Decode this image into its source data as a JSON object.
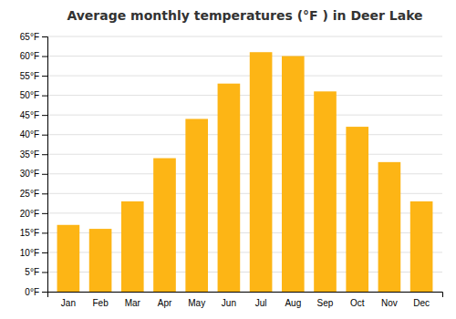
{
  "chart_data": {
    "type": "bar",
    "title": "Average monthly temperatures (°F ) in Deer Lake",
    "categories": [
      "Jan",
      "Feb",
      "Mar",
      "Apr",
      "May",
      "Jun",
      "Jul",
      "Aug",
      "Sep",
      "Oct",
      "Nov",
      "Dec"
    ],
    "values": [
      17,
      16,
      23,
      34,
      44,
      53,
      61,
      60,
      51,
      42,
      33,
      23
    ],
    "color": "#FDB515",
    "ylim": [
      0,
      65
    ],
    "yticks": [
      {
        "value": 0,
        "label": "0°F"
      },
      {
        "value": 5,
        "label": "5°F"
      },
      {
        "value": 10,
        "label": "10°F"
      },
      {
        "value": 15,
        "label": "15°F"
      },
      {
        "value": 20,
        "label": "20°F"
      },
      {
        "value": 25,
        "label": "25°F"
      },
      {
        "value": 30,
        "label": "30°F"
      },
      {
        "value": 35,
        "label": "35°F"
      },
      {
        "value": 40,
        "label": "40°F"
      },
      {
        "value": 45,
        "label": "45°F"
      },
      {
        "value": 50,
        "label": "50°F"
      },
      {
        "value": 55,
        "label": "55°F"
      },
      {
        "value": 60,
        "label": "60°F"
      },
      {
        "value": 65,
        "label": "65°F"
      }
    ],
    "grid": true
  }
}
